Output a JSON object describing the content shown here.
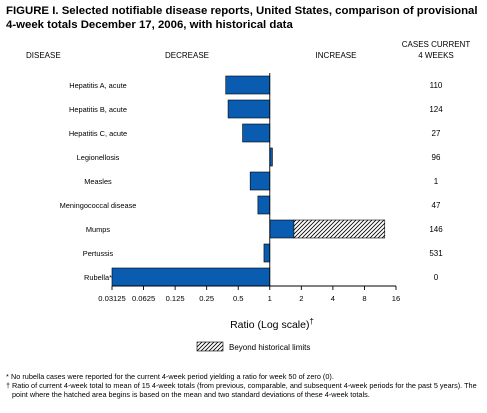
{
  "title": "FIGURE I. Selected notifiable disease reports, United States, comparison of provisional 4-week totals December 17, 2006, with historical data",
  "chart_data": {
    "type": "bar",
    "orientation": "horizontal",
    "scale": "log2",
    "column_headers": {
      "disease": "DISEASE",
      "decrease": "DECREASE",
      "increase": "INCREASE",
      "cases_line1": "CASES CURRENT",
      "cases_line2": "4 WEEKS"
    },
    "categories": [
      "Hepatitis A, acute",
      "Hepatitis B, acute",
      "Hepatitis C, acute",
      "Legionellosis",
      "Measles",
      "Meningococcal disease",
      "Mumps",
      "Pertussis",
      "Rubella*"
    ],
    "ratios": [
      0.38,
      0.4,
      0.55,
      1.06,
      0.65,
      0.77,
      12.5,
      0.88,
      0.03125
    ],
    "historical_limit_ratio": [
      null,
      null,
      null,
      null,
      null,
      null,
      1.7,
      null,
      null
    ],
    "cases_current_4_weeks": [
      "110",
      "124",
      "27",
      "96",
      "1",
      "47",
      "146",
      "531",
      "0"
    ],
    "x_ticks": [
      0.03125,
      0.0625,
      0.125,
      0.25,
      0.5,
      1,
      2,
      4,
      8,
      16
    ],
    "x_tick_labels": [
      "0.03125",
      "0.0625",
      "0.125",
      "0.25",
      "0.5",
      "1",
      "2",
      "4",
      "8",
      "16"
    ],
    "xlim": [
      0.03125,
      16
    ],
    "xlabel": "Ratio (Log scale)",
    "xlabel_mark": "†",
    "legend": {
      "label": "Beyond historical limits",
      "placement": "bottom-center"
    },
    "colors": {
      "bar": "#0a5cb0",
      "bar_stroke": "#000000"
    }
  },
  "footnotes": {
    "star_mark": "*",
    "star": "No rubella cases were reported for the current 4-week period yielding a ratio for week 50 of zero (0).",
    "dagger_mark": "†",
    "dagger": "Ratio of current 4-week total to mean of 15 4-week totals (from previous, comparable, and subsequent 4-week periods for the past 5 years). The point where the hatched area begins is based on the mean and two standard deviations of these 4-week totals."
  }
}
